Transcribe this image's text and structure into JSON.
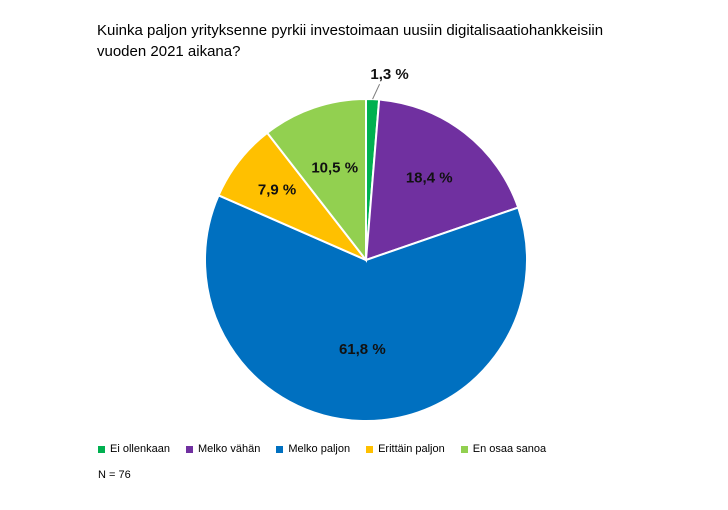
{
  "chart_data": {
    "type": "pie",
    "title_lines": [
      "Kuinka paljon yrityksenne pyrkii investoimaan uusiin digitalisaatiohankkeisiin",
      "vuoden 2021 aikana?"
    ],
    "slices": [
      {
        "name": "Ei ollenkaan",
        "value": 1.3,
        "label": "1,3 %",
        "color": "#00B050"
      },
      {
        "name": "Melko vähän",
        "value": 18.4,
        "label": "18,4 %",
        "color": "#7030A0"
      },
      {
        "name": "Melko paljon",
        "value": 61.8,
        "label": "61,8 %",
        "color": "#0070C0"
      },
      {
        "name": "Erittäin paljon",
        "value": 7.9,
        "label": "7,9 %",
        "color": "#FFC000"
      },
      {
        "name": "En osaa sanoa",
        "value": 10.5,
        "label": "10,5 %",
        "color": "#92D050"
      }
    ],
    "start_direction": "12 o'clock, clockwise",
    "legend_placement": "bottom",
    "note": "N = 76"
  }
}
